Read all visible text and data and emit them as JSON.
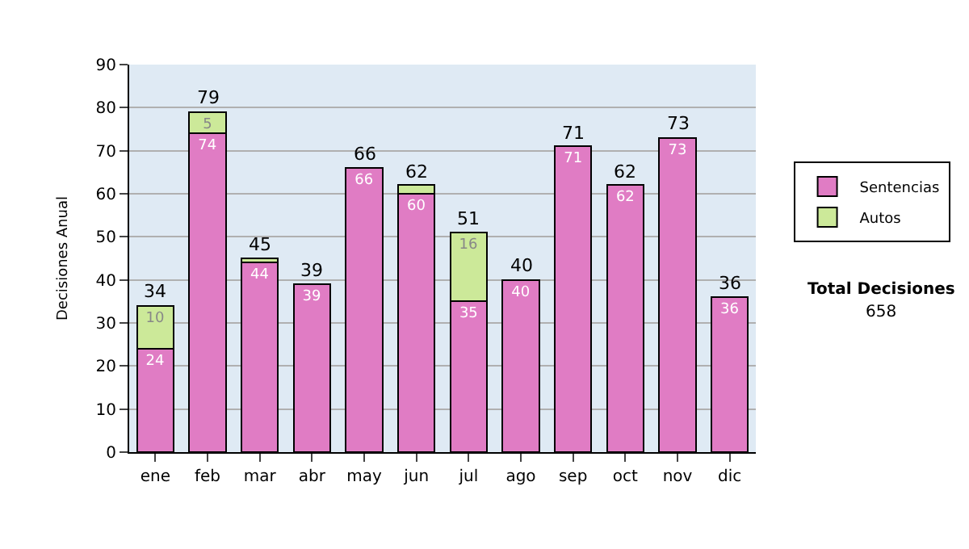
{
  "chart_data": {
    "type": "bar",
    "stacked": true,
    "ylabel": "Decisiones Anual",
    "categories": [
      "ene",
      "feb",
      "mar",
      "abr",
      "may",
      "jun",
      "jul",
      "ago",
      "sep",
      "oct",
      "nov",
      "dic"
    ],
    "series": [
      {
        "name": "Sentencias",
        "color": "#e07cc4",
        "values": [
          24,
          74,
          44,
          39,
          66,
          60,
          35,
          40,
          71,
          62,
          73,
          36
        ],
        "value_labels": [
          "24",
          "74",
          "44",
          "39",
          "66",
          "60",
          "35",
          "40",
          "71",
          "62",
          "73",
          "36"
        ]
      },
      {
        "name": "Autos",
        "color": "#cce999",
        "values": [
          10,
          5,
          1,
          null,
          null,
          2,
          16,
          null,
          null,
          null,
          null,
          null
        ],
        "value_labels": [
          "10",
          "5",
          null,
          null,
          null,
          null,
          "16",
          null,
          null,
          null,
          null,
          null
        ]
      }
    ],
    "totals": [
      "34",
      "79",
      "45",
      "39",
      "66",
      "62",
      "51",
      "40",
      "71",
      "62",
      "73",
      "36"
    ],
    "ylim": [
      0,
      90
    ],
    "yticks": [
      0,
      10,
      20,
      30,
      40,
      50,
      60,
      70,
      80,
      90
    ],
    "grid": "y",
    "legend": "right",
    "annotations": [
      "Total Decisiones",
      "658"
    ]
  }
}
